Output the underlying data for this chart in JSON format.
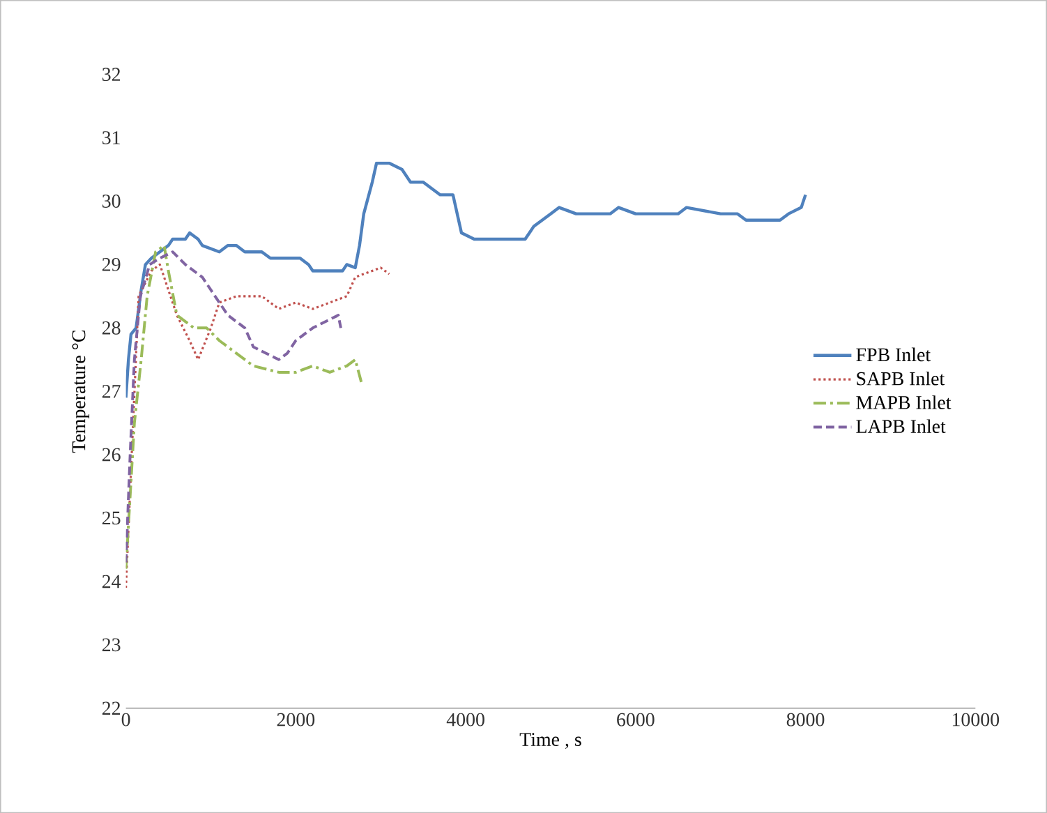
{
  "chart_data": {
    "type": "line",
    "xlabel": "Time , s",
    "ylabel": "Temperature °C",
    "xlim": [
      0,
      10000
    ],
    "ylim": [
      22,
      32
    ],
    "xticks": [
      0,
      2000,
      4000,
      6000,
      8000,
      10000
    ],
    "yticks": [
      22,
      23,
      24,
      25,
      26,
      27,
      28,
      29,
      30,
      31,
      32
    ],
    "grid": false,
    "legend": "right",
    "marker": "none",
    "series": [
      {
        "name": "FPB Inlet",
        "color": "#4f81bd",
        "line_style": "solid",
        "x": [
          0,
          30,
          60,
          120,
          180,
          230,
          300,
          400,
          500,
          550,
          700,
          750,
          850,
          900,
          1100,
          1200,
          1300,
          1400,
          1600,
          1700,
          2050,
          2150,
          2200,
          2550,
          2600,
          2700,
          2750,
          2800,
          2900,
          2950,
          3100,
          3250,
          3350,
          3500,
          3700,
          3850,
          3900,
          3950,
          4100,
          4700,
          4800,
          5000,
          5100,
          5300,
          5700,
          5800,
          6000,
          6500,
          6600,
          7000,
          7200,
          7300,
          7700,
          7800,
          7950,
          8000
        ],
        "values": [
          26.9,
          27.5,
          27.9,
          28.0,
          28.6,
          29.0,
          29.1,
          29.2,
          29.3,
          29.4,
          29.4,
          29.5,
          29.4,
          29.3,
          29.2,
          29.3,
          29.3,
          29.2,
          29.2,
          29.1,
          29.1,
          29.0,
          28.9,
          28.9,
          29.0,
          28.95,
          29.3,
          29.8,
          30.3,
          30.6,
          30.6,
          30.5,
          30.3,
          30.3,
          30.1,
          30.1,
          29.8,
          29.5,
          29.4,
          29.4,
          29.6,
          29.8,
          29.9,
          29.8,
          29.8,
          29.9,
          29.8,
          29.8,
          29.9,
          29.8,
          29.8,
          29.7,
          29.7,
          29.8,
          29.9,
          30.1
        ]
      },
      {
        "name": "SAPB Inlet",
        "color": "#c0504d",
        "line_style": "dotted",
        "x": [
          0,
          150,
          300,
          400,
          600,
          750,
          850,
          1000,
          1100,
          1300,
          1600,
          1800,
          2000,
          2200,
          2400,
          2600,
          2700,
          2900,
          3000,
          3100
        ],
        "values": [
          23.9,
          28.5,
          28.9,
          29.0,
          28.2,
          27.8,
          27.5,
          28.0,
          28.4,
          28.5,
          28.5,
          28.3,
          28.4,
          28.3,
          28.4,
          28.5,
          28.8,
          28.9,
          28.95,
          28.85
        ]
      },
      {
        "name": "MAPB Inlet",
        "color": "#9bbb59",
        "line_style": "dashdot",
        "x": [
          0,
          100,
          180,
          250,
          350,
          450,
          500,
          600,
          800,
          950,
          1100,
          1300,
          1500,
          1800,
          2000,
          2200,
          2400,
          2600,
          2700,
          2780
        ],
        "values": [
          24.2,
          26.5,
          27.5,
          28.5,
          29.2,
          29.3,
          28.9,
          28.2,
          28.0,
          28.0,
          27.8,
          27.6,
          27.4,
          27.3,
          27.3,
          27.4,
          27.3,
          27.4,
          27.5,
          27.1
        ]
      },
      {
        "name": "LAPB Inlet",
        "color": "#8064a2",
        "line_style": "dashed",
        "x": [
          0,
          50,
          100,
          170,
          280,
          400,
          550,
          700,
          900,
          1050,
          1200,
          1400,
          1500,
          1800,
          1900,
          2000,
          2200,
          2500,
          2530
        ],
        "values": [
          24.3,
          26.0,
          27.5,
          28.5,
          29.0,
          29.1,
          29.2,
          29.0,
          28.8,
          28.5,
          28.2,
          28.0,
          27.7,
          27.5,
          27.6,
          27.8,
          28.0,
          28.2,
          28.0
        ]
      }
    ]
  }
}
